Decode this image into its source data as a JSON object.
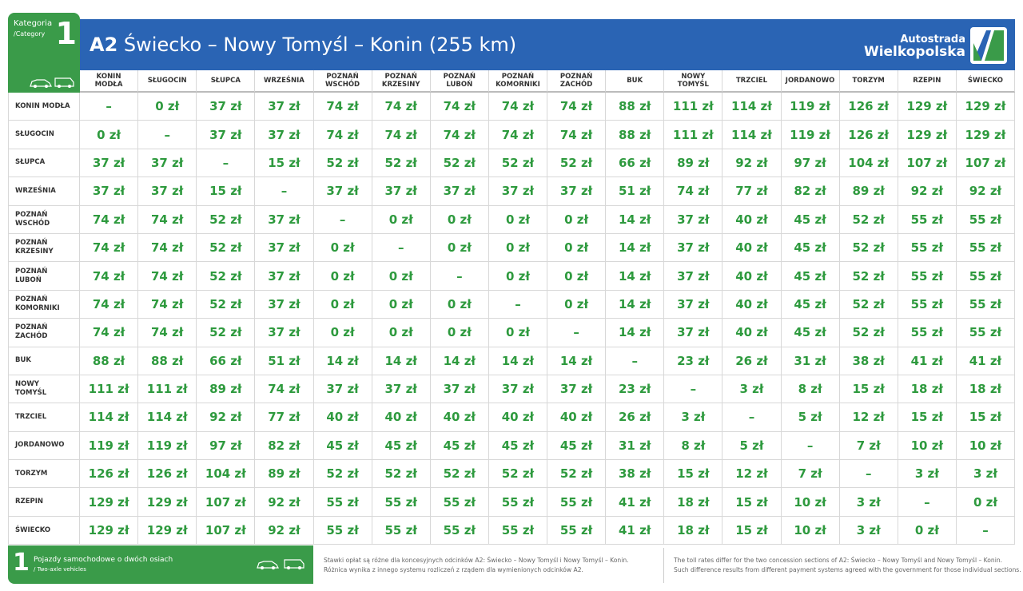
{
  "category": {
    "label": "Kategoria",
    "label_en": "/Category",
    "number": "1"
  },
  "header": {
    "road": "A2",
    "title": "Świecko – Nowy Tomyśl – Konin (255 km)",
    "logo_top": "Autostrada",
    "logo_bottom": "Wielkopolska"
  },
  "table": {
    "columns": [
      "KONIN\nMODŁA",
      "SŁUGOCIN",
      "SŁUPCA",
      "WRZEŚNIA",
      "POZNAŃ\nWSCHÓD",
      "POZNAŃ\nKRZESINY",
      "POZNAŃ\nLUBOŃ",
      "POZNAŃ\nKOMORNIKI",
      "POZNAŃ\nZACHÓD",
      "BUK",
      "NOWY\nTOMYŚL",
      "TRZCIEL",
      "JORDANOWO",
      "TORZYM",
      "RZEPIN",
      "ŚWIECKO"
    ],
    "rows": [
      {
        "label": "KONIN MODŁA",
        "cells": [
          "–",
          "0 zł",
          "37 zł",
          "37 zł",
          "74 zł",
          "74 zł",
          "74 zł",
          "74 zł",
          "74 zł",
          "88 zł",
          "111 zł",
          "114 zł",
          "119 zł",
          "126 zł",
          "129 zł",
          "129 zł"
        ]
      },
      {
        "label": "SŁUGOCIN",
        "cells": [
          "0 zł",
          "–",
          "37 zł",
          "37 zł",
          "74 zł",
          "74 zł",
          "74 zł",
          "74 zł",
          "74 zł",
          "88 zł",
          "111 zł",
          "114 zł",
          "119 zł",
          "126 zł",
          "129 zł",
          "129 zł"
        ]
      },
      {
        "label": "SŁUPCA",
        "cells": [
          "37 zł",
          "37 zł",
          "–",
          "15 zł",
          "52 zł",
          "52 zł",
          "52 zł",
          "52 zł",
          "52 zł",
          "66 zł",
          "89 zł",
          "92 zł",
          "97 zł",
          "104 zł",
          "107 zł",
          "107 zł"
        ]
      },
      {
        "label": "WRZEŚNIA",
        "cells": [
          "37 zł",
          "37 zł",
          "15 zł",
          "–",
          "37 zł",
          "37 zł",
          "37 zł",
          "37 zł",
          "37 zł",
          "51 zł",
          "74 zł",
          "77 zł",
          "82 zł",
          "89 zł",
          "92 zł",
          "92 zł"
        ]
      },
      {
        "label": "POZNAŃ\nWSCHÓD",
        "cells": [
          "74 zł",
          "74 zł",
          "52 zł",
          "37 zł",
          "–",
          "0 zł",
          "0 zł",
          "0 zł",
          "0 zł",
          "14 zł",
          "37 zł",
          "40 zł",
          "45 zł",
          "52 zł",
          "55 zł",
          "55 zł"
        ]
      },
      {
        "label": "POZNAŃ\nKRZESINY",
        "cells": [
          "74 zł",
          "74 zł",
          "52 zł",
          "37 zł",
          "0 zł",
          "–",
          "0 zł",
          "0 zł",
          "0 zł",
          "14 zł",
          "37 zł",
          "40 zł",
          "45 zł",
          "52 zł",
          "55 zł",
          "55 zł"
        ]
      },
      {
        "label": "POZNAŃ\nLUBOŃ",
        "cells": [
          "74 zł",
          "74 zł",
          "52 zł",
          "37 zł",
          "0 zł",
          "0 zł",
          "–",
          "0 zł",
          "0 zł",
          "14 zł",
          "37 zł",
          "40 zł",
          "45 zł",
          "52 zł",
          "55 zł",
          "55 zł"
        ]
      },
      {
        "label": "POZNAŃ\nKOMORNIKI",
        "cells": [
          "74 zł",
          "74 zł",
          "52 zł",
          "37 zł",
          "0 zł",
          "0 zł",
          "0 zł",
          "–",
          "0 zł",
          "14 zł",
          "37 zł",
          "40 zł",
          "45 zł",
          "52 zł",
          "55 zł",
          "55 zł"
        ]
      },
      {
        "label": "POZNAŃ\nZACHÓD",
        "cells": [
          "74 zł",
          "74 zł",
          "52 zł",
          "37 zł",
          "0 zł",
          "0 zł",
          "0 zł",
          "0 zł",
          "–",
          "14 zł",
          "37 zł",
          "40 zł",
          "45 zł",
          "52 zł",
          "55 zł",
          "55 zł"
        ]
      },
      {
        "label": "BUK",
        "cells": [
          "88 zł",
          "88 zł",
          "66 zł",
          "51 zł",
          "14 zł",
          "14 zł",
          "14 zł",
          "14 zł",
          "14 zł",
          "–",
          "23 zł",
          "26 zł",
          "31 zł",
          "38 zł",
          "41 zł",
          "41 zł"
        ]
      },
      {
        "label": "NOWY\nTOMYŚL",
        "cells": [
          "111 zł",
          "111 zł",
          "89 zł",
          "74 zł",
          "37 zł",
          "37 zł",
          "37 zł",
          "37 zł",
          "37 zł",
          "23 zł",
          "–",
          "3 zł",
          "8 zł",
          "15 zł",
          "18 zł",
          "18 zł"
        ]
      },
      {
        "label": "TRZCIEL",
        "cells": [
          "114 zł",
          "114 zł",
          "92 zł",
          "77 zł",
          "40 zł",
          "40 zł",
          "40 zł",
          "40 zł",
          "40 zł",
          "26 zł",
          "3 zł",
          "–",
          "5 zł",
          "12 zł",
          "15 zł",
          "15 zł"
        ]
      },
      {
        "label": "JORDANOWO",
        "cells": [
          "119 zł",
          "119 zł",
          "97 zł",
          "82 zł",
          "45 zł",
          "45 zł",
          "45 zł",
          "45 zł",
          "45 zł",
          "31 zł",
          "8 zł",
          "5 zł",
          "–",
          "7 zł",
          "10 zł",
          "10 zł"
        ]
      },
      {
        "label": "TORZYM",
        "cells": [
          "126 zł",
          "126 zł",
          "104 zł",
          "89 zł",
          "52 zł",
          "52 zł",
          "52 zł",
          "52 zł",
          "52 zł",
          "38 zł",
          "15 zł",
          "12 zł",
          "7 zł",
          "–",
          "3 zł",
          "3 zł"
        ]
      },
      {
        "label": "RZEPIN",
        "cells": [
          "129 zł",
          "129 zł",
          "107 zł",
          "92 zł",
          "55 zł",
          "55 zł",
          "55 zł",
          "55 zł",
          "55 zł",
          "41 zł",
          "18 zł",
          "15 zł",
          "10 zł",
          "3 zł",
          "–",
          "0 zł"
        ]
      },
      {
        "label": "ŚWIECKO",
        "cells": [
          "129 zł",
          "129 zł",
          "107 zł",
          "92 zł",
          "55 zł",
          "55 zł",
          "55 zł",
          "55 zł",
          "55 zł",
          "41 zł",
          "18 zł",
          "15 zł",
          "10 zł",
          "3 zł",
          "0 zł",
          "–"
        ]
      }
    ]
  },
  "footer": {
    "number": "1",
    "vehicle": "Pojazdy samochodowe o dwóch osiach",
    "vehicle_en": "/ Two-axle vehicles",
    "note_pl": [
      "Stawki opłat są różne dla koncesyjnych odcinków A2: Świecko – Nowy Tomyśl i Nowy Tomyśl – Konin.",
      "Różnica wynika z innego systemu rozliczeń z rządem dla wymienionych odcinków A2."
    ],
    "note_en": [
      "The toll rates differ for the two concession sections of A2: Świecko – Nowy Tomyśl and Nowy Tomyśl – Konin.",
      "Such difference results from different payment systems agreed with the government for those individual sections."
    ]
  }
}
